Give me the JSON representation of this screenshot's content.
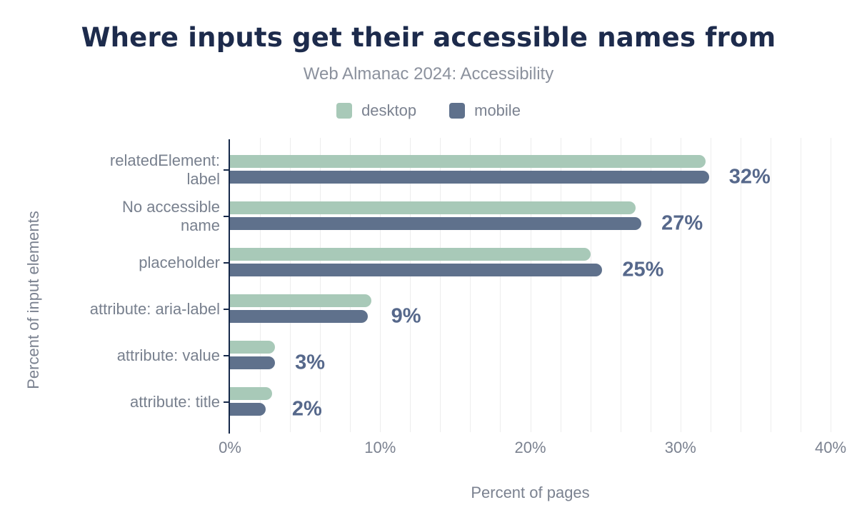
{
  "header": {
    "title": "Where inputs get their accessible names from",
    "subtitle": "Web Almanac 2024: Accessibility"
  },
  "colors": {
    "title": "#1d2b4c",
    "subtitle": "#8b919d",
    "axis": "#16294a",
    "grid": "#ededed",
    "category_label": "#78808e",
    "tick_label": "#7b8290",
    "value_label": "#56688b",
    "desktop": "#a8c9b8",
    "mobile": "#5f718c",
    "background": "#ffffff"
  },
  "chart_data": {
    "type": "bar",
    "orientation": "horizontal",
    "title": "Where inputs get their accessible names from",
    "subtitle": "Web Almanac 2024: Accessibility",
    "categories": [
      "relatedElement:\nlabel",
      "No accessible\nname",
      "placeholder",
      "attribute: aria-label",
      "attribute: value",
      "attribute: title"
    ],
    "series": [
      {
        "name": "desktop",
        "color": "#a8c9b8",
        "values": [
          31.7,
          27.0,
          24.0,
          9.4,
          3.0,
          2.8
        ]
      },
      {
        "name": "mobile",
        "color": "#5f718c",
        "values": [
          31.9,
          27.4,
          24.8,
          9.2,
          3.0,
          2.4
        ]
      }
    ],
    "value_labels": [
      "32%",
      "27%",
      "25%",
      "9%",
      "3%",
      "2%"
    ],
    "xlabel": "Percent of pages",
    "ylabel": "Percent of input elements",
    "xlim": [
      0,
      40
    ],
    "xticks": [
      "0%",
      "10%",
      "20%",
      "30%",
      "40%"
    ],
    "xtick_values": [
      0,
      10,
      20,
      30,
      40
    ],
    "grid_step": 2,
    "grid": "on",
    "legend_position": "top"
  }
}
